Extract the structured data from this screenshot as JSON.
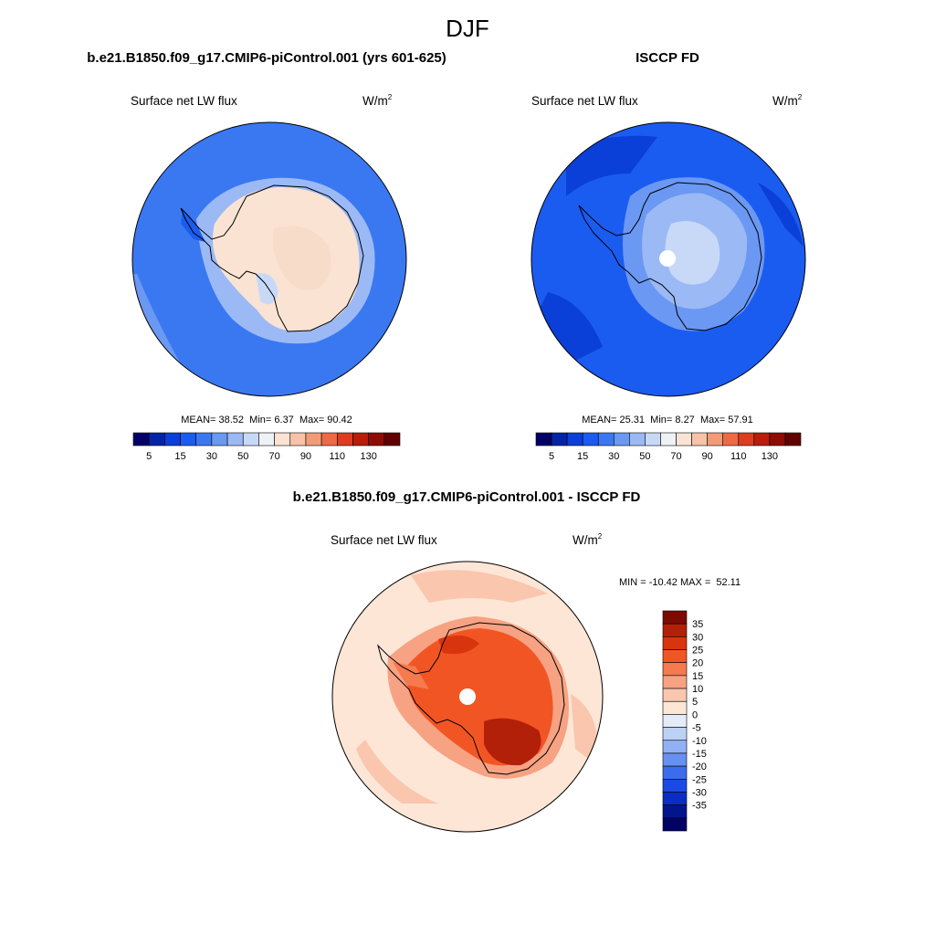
{
  "page_title": "DJF",
  "panels": [
    {
      "id": "model",
      "title": "b.e21.B1850.f09_g17.CMIP6-piControl.001 (yrs 601-625)",
      "variable": "Surface net LW flux",
      "units_base": "W/m",
      "units_exp": "2",
      "stats": {
        "mean_label": "MEAN=",
        "mean": "38.52",
        "min_label": "Min=",
        "min": "6.37",
        "max_label": "Max=",
        "max": "90.42"
      },
      "colorbar_ticks": [
        "5",
        "15",
        "30",
        "50",
        "70",
        "90",
        "110",
        "130"
      ]
    },
    {
      "id": "obs",
      "title": "ISCCP FD",
      "variable": "Surface net LW flux",
      "units_base": "W/m",
      "units_exp": "2",
      "stats": {
        "mean_label": "MEAN=",
        "mean": "25.31",
        "min_label": "Min=",
        "min": "8.27",
        "max_label": "Max=",
        "max": "57.91"
      },
      "colorbar_ticks": [
        "5",
        "15",
        "30",
        "50",
        "70",
        "90",
        "110",
        "130"
      ]
    },
    {
      "id": "diff",
      "title": "b.e21.B1850.f09_g17.CMIP6-piControl.001 - ISCCP FD",
      "variable": "Surface net LW flux",
      "units_base": "W/m",
      "units_exp": "2",
      "minmax_text": "MIN = -10.42 MAX =  52.11",
      "colorbar_ticks": [
        "35",
        "30",
        "25",
        "20",
        "15",
        "10",
        "5",
        "0",
        "-5",
        "-10",
        "-15",
        "-20",
        "-25",
        "-30",
        "-35"
      ]
    }
  ],
  "chart_data": [
    {
      "type": "heatmap",
      "projection": "south-polar-stereographic",
      "title": "b.e21.B1850.f09_g17.CMIP6-piControl.001 (yrs 601-625)",
      "variable": "Surface net LW flux",
      "units": "W/m2",
      "mean": 38.52,
      "min": 6.37,
      "max": 90.42,
      "levels": [
        5,
        10,
        15,
        20,
        25,
        30,
        40,
        50,
        60,
        70,
        80,
        90,
        100,
        110,
        120,
        130
      ],
      "colors": [
        "#020066",
        "#0424a8",
        "#0a3fd8",
        "#1b5cf0",
        "#3a78f2",
        "#6a98f3",
        "#9bb9f5",
        "#c8d9f8",
        "#eef2f6",
        "#fbe3d3",
        "#f7c3a8",
        "#f39b78",
        "#ee6a45",
        "#dc3d1f",
        "#b81e0a",
        "#8e0c04",
        "#620200"
      ]
    },
    {
      "type": "heatmap",
      "projection": "south-polar-stereographic",
      "title": "ISCCP FD",
      "variable": "Surface net LW flux",
      "units": "W/m2",
      "mean": 25.31,
      "min": 8.27,
      "max": 57.91,
      "levels": [
        5,
        10,
        15,
        20,
        25,
        30,
        40,
        50,
        60,
        70,
        80,
        90,
        100,
        110,
        120,
        130
      ],
      "colors": [
        "#020066",
        "#0424a8",
        "#0a3fd8",
        "#1b5cf0",
        "#3a78f2",
        "#6a98f3",
        "#9bb9f5",
        "#c8d9f8",
        "#eef2f6",
        "#fbe3d3",
        "#f7c3a8",
        "#f39b78",
        "#ee6a45",
        "#dc3d1f",
        "#b81e0a",
        "#8e0c04",
        "#620200"
      ]
    },
    {
      "type": "heatmap",
      "projection": "south-polar-stereographic",
      "title": "b.e21.B1850.f09_g17.CMIP6-piControl.001 - ISCCP FD",
      "variable": "Surface net LW flux",
      "units": "W/m2",
      "min": -10.42,
      "max": 52.11,
      "levels": [
        35,
        30,
        25,
        20,
        15,
        10,
        5,
        0,
        -5,
        -10,
        -15,
        -20,
        -25,
        -30,
        -35
      ],
      "colors": [
        "#7d0a02",
        "#b3200a",
        "#d8350f",
        "#f25524",
        "#f57a4f",
        "#f7a283",
        "#fac6ae",
        "#fde6d6",
        "#e4ecf7",
        "#bcd1f6",
        "#91b1f4",
        "#6690f1",
        "#3c6cee",
        "#1a4ae6",
        "#0a2dc4",
        "#02158c",
        "#010264"
      ]
    }
  ]
}
